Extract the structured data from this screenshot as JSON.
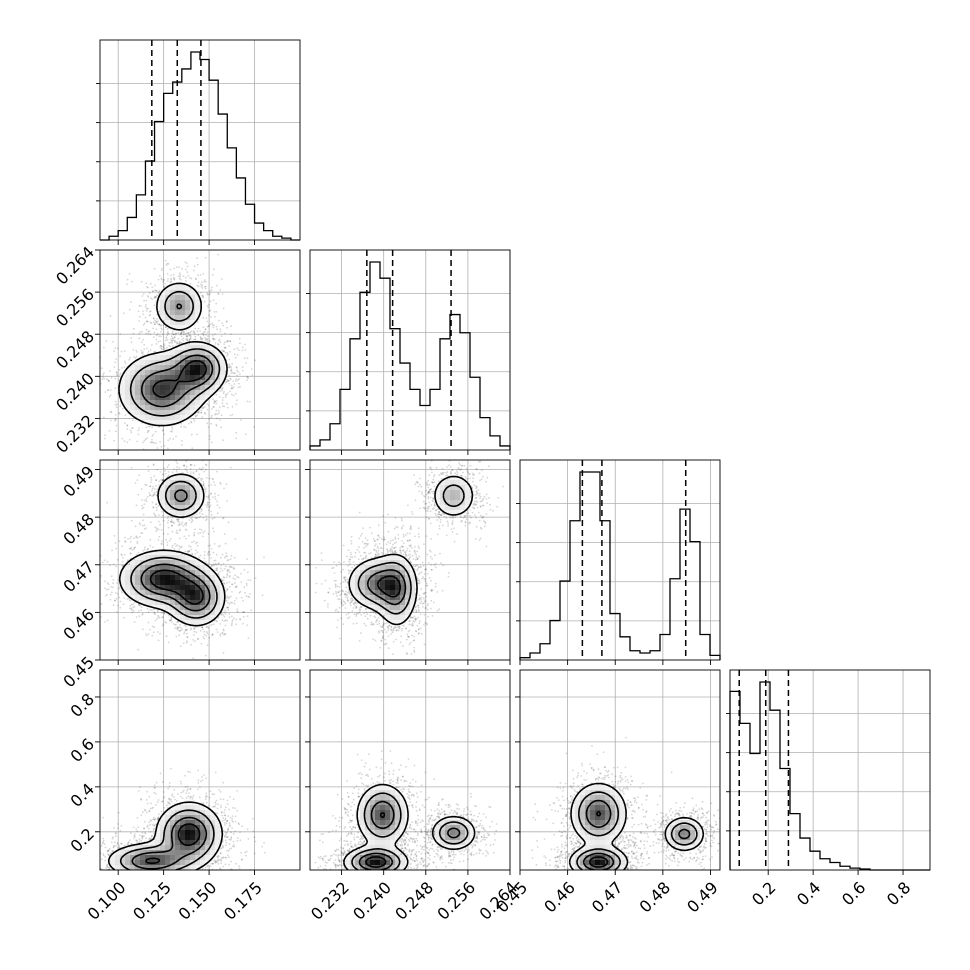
{
  "chart_data": {
    "type": "corner",
    "grid": true,
    "parameters": [
      {
        "range": [
          0.09,
          0.2
        ],
        "ticks": [
          "0.100",
          "0.125",
          "0.150",
          "0.175"
        ],
        "tick_values": [
          0.1,
          0.125,
          0.15,
          0.175
        ],
        "histogram": [
          0.0,
          0.02,
          0.05,
          0.12,
          0.24,
          0.42,
          0.63,
          0.78,
          0.84,
          0.91,
          1.0,
          0.96,
          0.85,
          0.67,
          0.49,
          0.33,
          0.19,
          0.09,
          0.05,
          0.02,
          0.01,
          0.0
        ],
        "quantiles": [
          0.1185,
          0.1325,
          0.1455
        ]
      },
      {
        "range": [
          0.226,
          0.264
        ],
        "ticks": [
          "0.232",
          "0.240",
          "0.248",
          "0.256",
          "0.264"
        ],
        "tick_values": [
          0.232,
          0.24,
          0.248,
          0.256,
          0.264
        ],
        "histogram": [
          0.02,
          0.05,
          0.13,
          0.3,
          0.55,
          0.78,
          0.93,
          0.85,
          0.6,
          0.43,
          0.3,
          0.22,
          0.3,
          0.55,
          0.67,
          0.58,
          0.36,
          0.16,
          0.07,
          0.02
        ],
        "quantiles": [
          0.2368,
          0.2417,
          0.2528
        ]
      },
      {
        "range": [
          0.45,
          0.492
        ],
        "ticks": [
          "0.45",
          "0.46",
          "0.47",
          "0.48",
          "0.49"
        ],
        "tick_values": [
          0.45,
          0.46,
          0.47,
          0.48,
          0.49
        ],
        "histogram": [
          0.01,
          0.03,
          0.07,
          0.17,
          0.34,
          0.6,
          0.81,
          0.81,
          0.6,
          0.2,
          0.1,
          0.04,
          0.03,
          0.04,
          0.11,
          0.35,
          0.65,
          0.51,
          0.11,
          0.02
        ],
        "quantiles": [
          0.4631,
          0.4672,
          0.4848
        ]
      },
      {
        "range": [
          0.03,
          0.92
        ],
        "ticks": [
          "0.2",
          "0.4",
          "0.6",
          "0.8"
        ],
        "tick_values": [
          0.2,
          0.4,
          0.6,
          0.8
        ],
        "histogram": [
          0.95,
          0.78,
          0.62,
          1.0,
          0.85,
          0.54,
          0.3,
          0.17,
          0.1,
          0.06,
          0.04,
          0.02,
          0.01,
          0.005,
          0.0,
          0.0,
          0.0,
          0.0,
          0.0,
          0.0
        ],
        "quantiles": [
          0.071,
          0.189,
          0.29
        ]
      }
    ],
    "pairs": [
      {
        "row": 1,
        "col": 0,
        "clusters": [
          {
            "center": [
              0.1335,
              0.2533
            ],
            "spread": [
              0.007,
              0.0025
            ],
            "weight": 0.4
          },
          {
            "center": [
              0.124,
              0.2375
            ],
            "spread": [
              0.012,
              0.0035
            ],
            "weight": 0.6
          },
          {
            "center": [
              0.144,
              0.2415
            ],
            "spread": [
              0.008,
              0.0025
            ],
            "weight": 0.6
          }
        ]
      },
      {
        "row": 2,
        "col": 0,
        "clusters": [
          {
            "center": [
              0.1345,
              0.4845
            ],
            "spread": [
              0.007,
              0.0025
            ],
            "weight": 0.4
          },
          {
            "center": [
              0.125,
              0.467
            ],
            "spread": [
              0.012,
              0.003
            ],
            "weight": 0.6
          },
          {
            "center": [
              0.143,
              0.463
            ],
            "spread": [
              0.008,
              0.003
            ],
            "weight": 0.5
          }
        ]
      },
      {
        "row": 2,
        "col": 1,
        "clusters": [
          {
            "center": [
              0.2533,
              0.4845
            ],
            "spread": [
              0.0022,
              0.0025
            ],
            "weight": 0.4
          },
          {
            "center": [
              0.239,
              0.466
            ],
            "spread": [
              0.003,
              0.0028
            ],
            "weight": 0.6
          },
          {
            "center": [
              0.2425,
              0.4645
            ],
            "spread": [
              0.002,
              0.004
            ],
            "weight": 0.5
          }
        ]
      },
      {
        "row": 3,
        "col": 0,
        "clusters": [
          {
            "center": [
              0.139,
              0.19
            ],
            "spread": [
              0.009,
              0.07
            ],
            "weight": 0.6
          },
          {
            "center": [
              0.118,
              0.07
            ],
            "spread": [
              0.012,
              0.04
            ],
            "weight": 0.5
          }
        ]
      },
      {
        "row": 3,
        "col": 1,
        "clusters": [
          {
            "center": [
              0.2398,
              0.275
            ],
            "spread": [
              0.0025,
              0.07
            ],
            "weight": 0.5
          },
          {
            "center": [
              0.2533,
              0.195
            ],
            "spread": [
              0.0022,
              0.04
            ],
            "weight": 0.4
          },
          {
            "center": [
              0.2385,
              0.065
            ],
            "spread": [
              0.003,
              0.035
            ],
            "weight": 0.6
          }
        ]
      },
      {
        "row": 3,
        "col": 2,
        "clusters": [
          {
            "center": [
              0.4665,
              0.28
            ],
            "spread": [
              0.003,
              0.07
            ],
            "weight": 0.5
          },
          {
            "center": [
              0.4845,
              0.19
            ],
            "spread": [
              0.0022,
              0.04
            ],
            "weight": 0.4
          },
          {
            "center": [
              0.4665,
              0.065
            ],
            "spread": [
              0.003,
              0.035
            ],
            "weight": 0.6
          }
        ]
      }
    ]
  }
}
